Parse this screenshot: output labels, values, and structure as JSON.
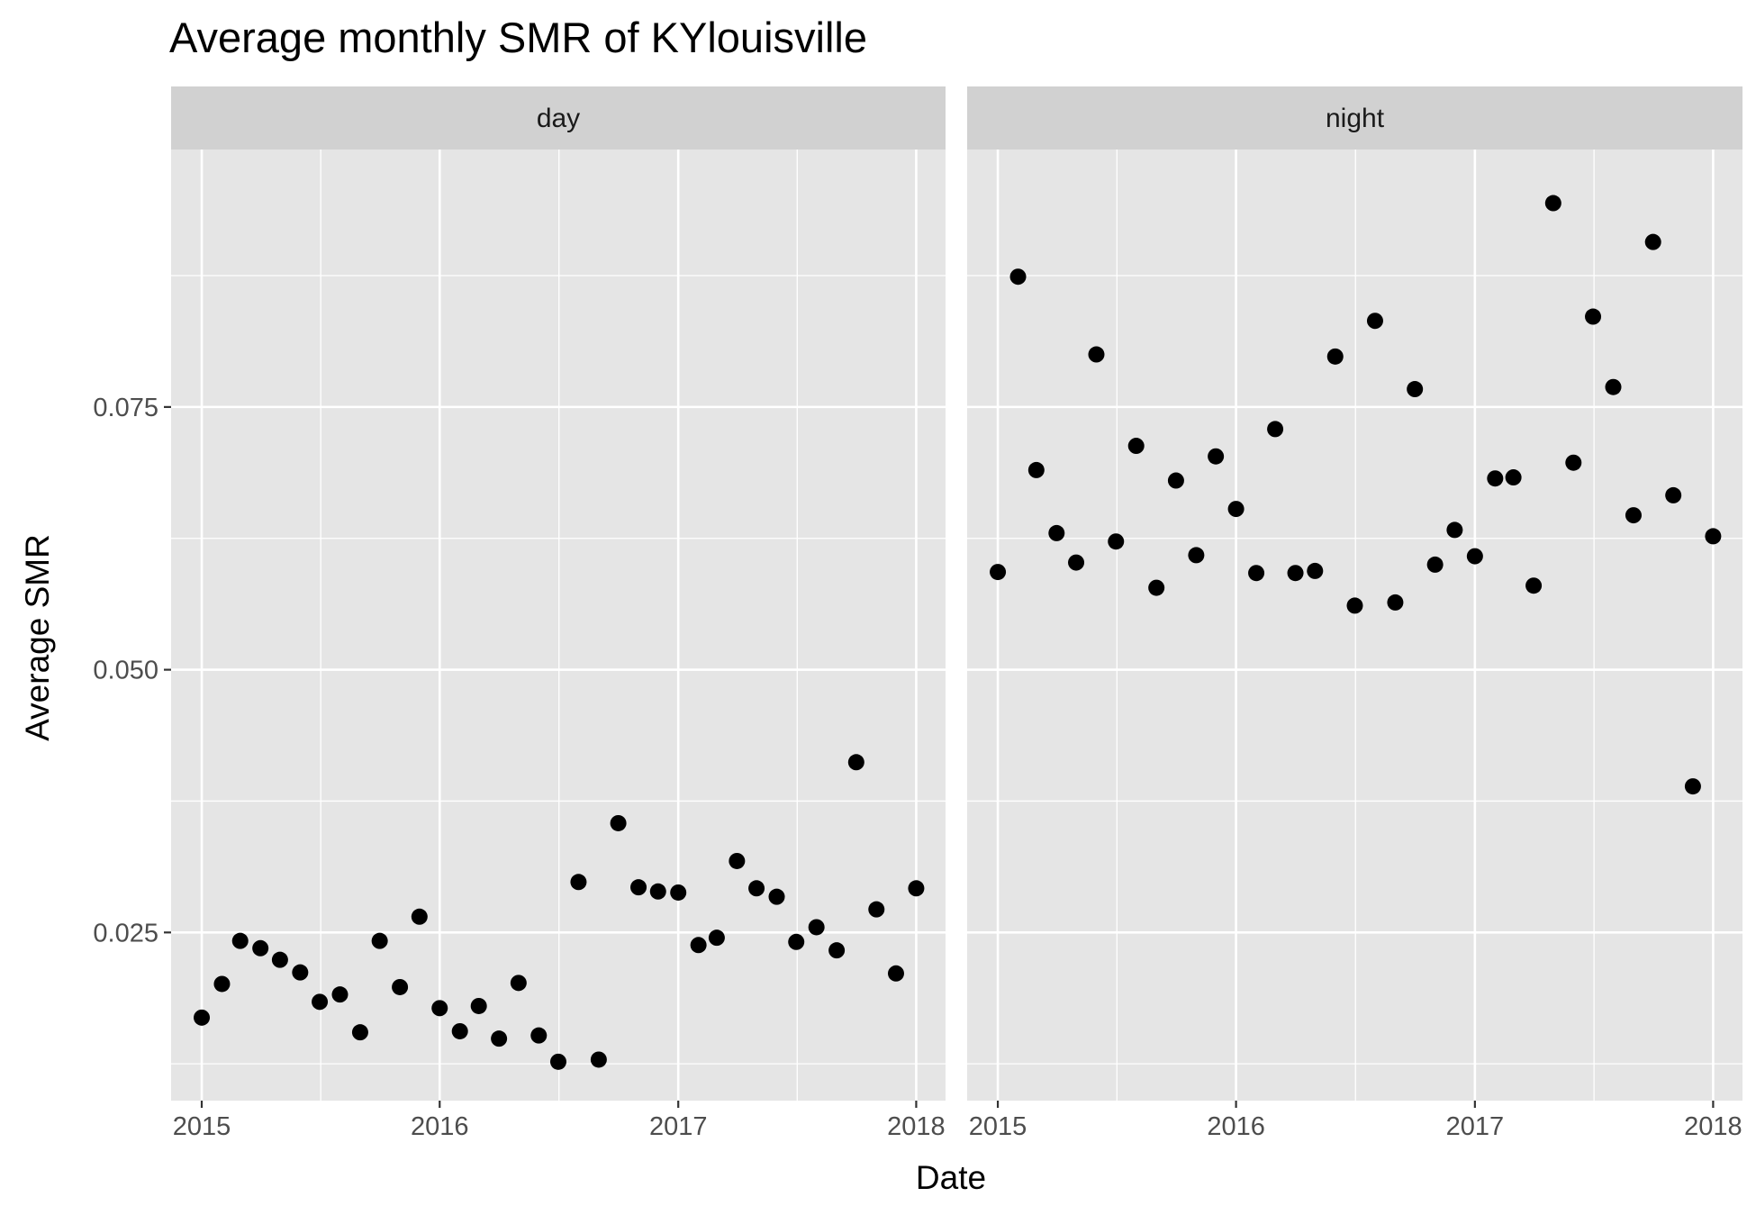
{
  "title": "Average monthly SMR of KYlouisville",
  "chart_data": {
    "type": "scatter",
    "title": "Average monthly SMR of KYlouisville",
    "xlabel": "Date",
    "ylabel": "Average SMR",
    "x_ticks": [
      "2015",
      "2016",
      "2017",
      "2018"
    ],
    "y_ticks": [
      "0.025",
      "0.050",
      "0.075"
    ],
    "xlim": [
      "2014-11-15",
      "2018-02-15"
    ],
    "ylim": [
      0.009,
      0.0995
    ],
    "grid": true,
    "legend": "none",
    "point_color": "#000000",
    "panel_background": "#e5e5e5",
    "strip_background": "#d1d1d1",
    "facets": [
      {
        "name": "day",
        "points": [
          {
            "x": "2015-01-01",
            "y": 0.0169
          },
          {
            "x": "2015-02-01",
            "y": 0.0201
          },
          {
            "x": "2015-03-01",
            "y": 0.0242
          },
          {
            "x": "2015-04-01",
            "y": 0.0235
          },
          {
            "x": "2015-05-01",
            "y": 0.0224
          },
          {
            "x": "2015-06-01",
            "y": 0.0212
          },
          {
            "x": "2015-07-01",
            "y": 0.0184
          },
          {
            "x": "2015-08-01",
            "y": 0.0191
          },
          {
            "x": "2015-09-01",
            "y": 0.0155
          },
          {
            "x": "2015-10-01",
            "y": 0.0242
          },
          {
            "x": "2015-11-01",
            "y": 0.0198
          },
          {
            "x": "2015-12-01",
            "y": 0.0265
          },
          {
            "x": "2016-01-01",
            "y": 0.0178
          },
          {
            "x": "2016-02-01",
            "y": 0.0156
          },
          {
            "x": "2016-03-01",
            "y": 0.018
          },
          {
            "x": "2016-04-01",
            "y": 0.0149
          },
          {
            "x": "2016-05-01",
            "y": 0.0202
          },
          {
            "x": "2016-06-01",
            "y": 0.0152
          },
          {
            "x": "2016-07-01",
            "y": 0.0127
          },
          {
            "x": "2016-08-01",
            "y": 0.0298
          },
          {
            "x": "2016-09-01",
            "y": 0.0129
          },
          {
            "x": "2016-10-01",
            "y": 0.0354
          },
          {
            "x": "2016-11-01",
            "y": 0.0293
          },
          {
            "x": "2016-12-01",
            "y": 0.0289
          },
          {
            "x": "2017-01-01",
            "y": 0.0288
          },
          {
            "x": "2017-02-01",
            "y": 0.0238
          },
          {
            "x": "2017-03-01",
            "y": 0.0245
          },
          {
            "x": "2017-04-01",
            "y": 0.0318
          },
          {
            "x": "2017-05-01",
            "y": 0.0292
          },
          {
            "x": "2017-06-01",
            "y": 0.0284
          },
          {
            "x": "2017-07-01",
            "y": 0.0241
          },
          {
            "x": "2017-08-01",
            "y": 0.0255
          },
          {
            "x": "2017-09-01",
            "y": 0.0233
          },
          {
            "x": "2017-10-01",
            "y": 0.0412
          },
          {
            "x": "2017-11-01",
            "y": 0.0272
          },
          {
            "x": "2017-12-01",
            "y": 0.0211
          },
          {
            "x": "2018-01-01",
            "y": 0.0292
          }
        ]
      },
      {
        "name": "night",
        "points": [
          {
            "x": "2015-01-01",
            "y": 0.0593
          },
          {
            "x": "2015-02-01",
            "y": 0.0874
          },
          {
            "x": "2015-03-01",
            "y": 0.069
          },
          {
            "x": "2015-04-01",
            "y": 0.063
          },
          {
            "x": "2015-05-01",
            "y": 0.0602
          },
          {
            "x": "2015-06-01",
            "y": 0.08
          },
          {
            "x": "2015-07-01",
            "y": 0.0622
          },
          {
            "x": "2015-08-01",
            "y": 0.0713
          },
          {
            "x": "2015-09-01",
            "y": 0.0578
          },
          {
            "x": "2015-10-01",
            "y": 0.068
          },
          {
            "x": "2015-11-01",
            "y": 0.0609
          },
          {
            "x": "2015-12-01",
            "y": 0.0703
          },
          {
            "x": "2016-01-01",
            "y": 0.0653
          },
          {
            "x": "2016-02-01",
            "y": 0.0592
          },
          {
            "x": "2016-03-01",
            "y": 0.0729
          },
          {
            "x": "2016-04-01",
            "y": 0.0592
          },
          {
            "x": "2016-05-01",
            "y": 0.0594
          },
          {
            "x": "2016-06-01",
            "y": 0.0798
          },
          {
            "x": "2016-07-01",
            "y": 0.0561
          },
          {
            "x": "2016-08-01",
            "y": 0.0832
          },
          {
            "x": "2016-09-01",
            "y": 0.0564
          },
          {
            "x": "2016-10-01",
            "y": 0.0767
          },
          {
            "x": "2016-11-01",
            "y": 0.06
          },
          {
            "x": "2016-12-01",
            "y": 0.0633
          },
          {
            "x": "2017-01-01",
            "y": 0.0608
          },
          {
            "x": "2017-02-01",
            "y": 0.0682
          },
          {
            "x": "2017-03-01",
            "y": 0.0683
          },
          {
            "x": "2017-04-01",
            "y": 0.058
          },
          {
            "x": "2017-05-01",
            "y": 0.0944
          },
          {
            "x": "2017-06-01",
            "y": 0.0697
          },
          {
            "x": "2017-07-01",
            "y": 0.0836
          },
          {
            "x": "2017-08-01",
            "y": 0.0769
          },
          {
            "x": "2017-09-01",
            "y": 0.0647
          },
          {
            "x": "2017-10-01",
            "y": 0.0907
          },
          {
            "x": "2017-11-01",
            "y": 0.0666
          },
          {
            "x": "2017-12-01",
            "y": 0.0389
          },
          {
            "x": "2018-01-01",
            "y": 0.0627
          }
        ]
      }
    ]
  }
}
